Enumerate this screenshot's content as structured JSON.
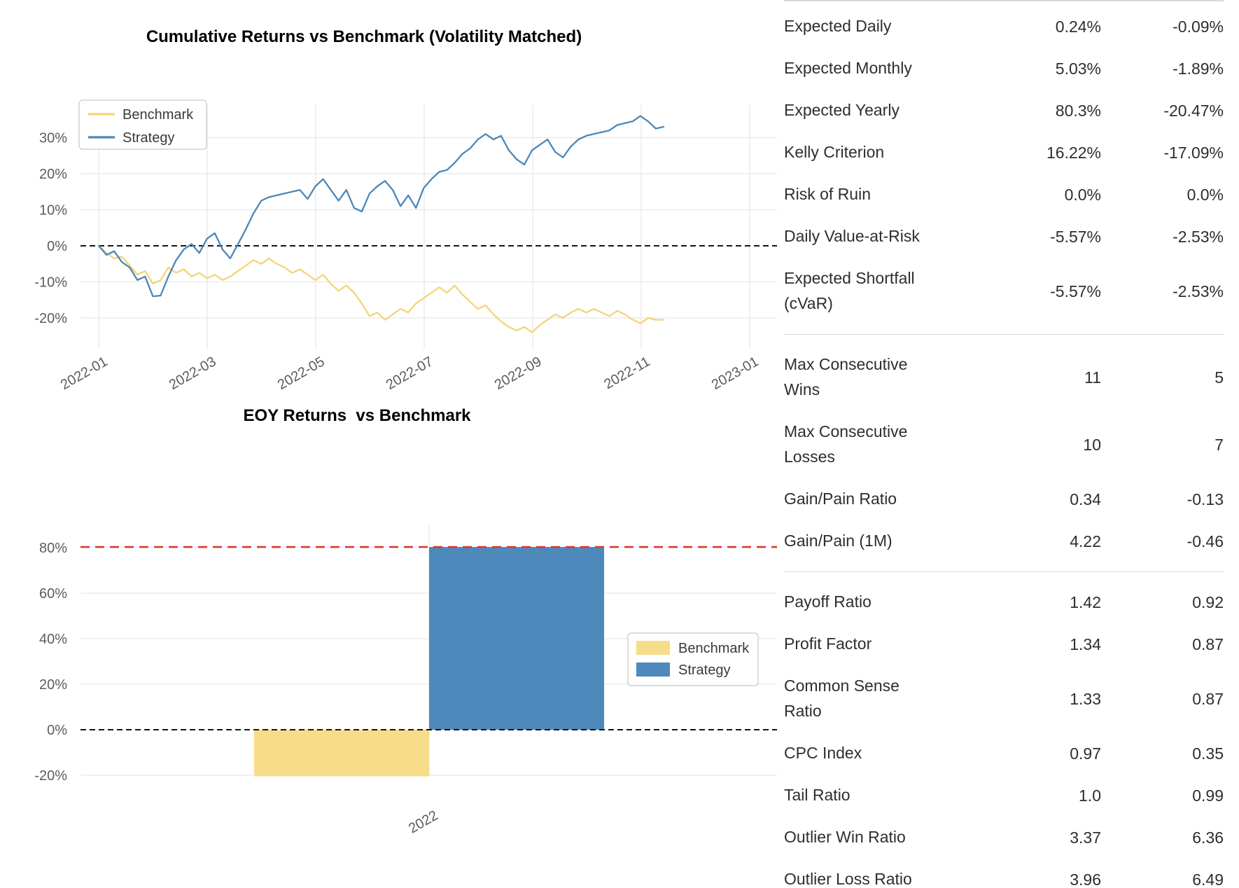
{
  "chart_data": [
    {
      "type": "line",
      "title": "Cumulative Returns vs Benchmark (Volatility Matched)",
      "x_tick_labels": [
        "2022-01",
        "2022-03",
        "2022-05",
        "2022-07",
        "2022-09",
        "2022-11",
        "2023-01"
      ],
      "y_ticks": [
        30,
        20,
        10,
        0,
        -10,
        -20
      ],
      "y_tick_labels": [
        "30%",
        "20%",
        "10%",
        "0%",
        "-10%",
        "-20%"
      ],
      "ylim": [
        -28.5,
        39
      ],
      "grid": true,
      "legend_loc": "upper left",
      "zero_line": {
        "value": 0,
        "style": "dashed",
        "color": "#151515"
      },
      "series": [
        {
          "name": "Benchmark",
          "color": "#f3d577",
          "values": [
            0,
            -2,
            -3.5,
            -3,
            -5.5,
            -8,
            -7,
            -10.5,
            -9.5,
            -6,
            -7.5,
            -6.5,
            -8.5,
            -7.5,
            -9,
            -8,
            -9.5,
            -8.5,
            -7,
            -5.5,
            -4,
            -5,
            -3.5,
            -5,
            -6,
            -7.5,
            -6.5,
            -8,
            -9.5,
            -8,
            -10.5,
            -12.5,
            -11,
            -13,
            -16,
            -19.5,
            -18.5,
            -20.5,
            -19,
            -17.5,
            -18.5,
            -16,
            -14.5,
            -13,
            -11.5,
            -13,
            -11,
            -13.5,
            -15.5,
            -17.5,
            -16.5,
            -19,
            -21,
            -22.5,
            -23.5,
            -22.5,
            -24,
            -22,
            -20.5,
            -19,
            -20,
            -18.5,
            -17.5,
            -18.5,
            -17.5,
            -18.5,
            -19.5,
            -18,
            -19,
            -20.5,
            -21.5,
            -20,
            -20.5,
            -20.5
          ]
        },
        {
          "name": "Strategy",
          "color": "#4c87b9",
          "values": [
            0,
            -2.5,
            -1.5,
            -4.5,
            -6,
            -9.5,
            -8.5,
            -14,
            -13.8,
            -8.5,
            -4,
            -1,
            0.5,
            -2,
            2,
            3.5,
            -1,
            -3.5,
            0.5,
            4.5,
            9,
            12.5,
            13.5,
            14,
            14.5,
            15,
            15.5,
            13,
            16.5,
            18.5,
            15.5,
            12.5,
            15.5,
            10.5,
            9.5,
            14.5,
            16.5,
            18,
            15.5,
            11,
            14,
            10.5,
            16,
            18.5,
            20.5,
            21,
            23,
            25.5,
            27,
            29.5,
            31,
            29.5,
            30.5,
            26.5,
            24,
            22.5,
            26.5,
            28,
            29.5,
            26,
            24.5,
            27.5,
            29.5,
            30.5,
            31,
            31.5,
            32,
            33.5,
            34,
            34.5,
            36,
            34.5,
            32.5,
            33
          ]
        }
      ]
    },
    {
      "type": "bar",
      "title": "EOY Returns  vs Benchmark",
      "categories": [
        "2022"
      ],
      "y_ticks": [
        80,
        60,
        40,
        20,
        0,
        -20
      ],
      "y_tick_labels": [
        "80%",
        "60%",
        "40%",
        "20%",
        "0%",
        "-20%"
      ],
      "ylim": [
        -28,
        90
      ],
      "grid": true,
      "legend_loc": "center right",
      "zero_line": {
        "value": 0,
        "style": "dashed",
        "color": "#151515"
      },
      "ref_line": {
        "value": 80.3,
        "style": "dashed",
        "color": "#d93a2b"
      },
      "series": [
        {
          "name": "Benchmark",
          "color": "#f7dc8a",
          "values": [
            -20.47
          ]
        },
        {
          "name": "Strategy",
          "color": "#4e89bc",
          "values": [
            80.3
          ]
        }
      ]
    }
  ],
  "metrics_table": {
    "sections": [
      {
        "rows": [
          {
            "label": "Expected Daily",
            "values": [
              "0.24%",
              "-0.09%"
            ]
          },
          {
            "label": "Expected Monthly",
            "values": [
              "5.03%",
              "-1.89%"
            ]
          },
          {
            "label": "Expected Yearly",
            "values": [
              "80.3%",
              "-20.47%"
            ]
          },
          {
            "label": "Kelly Criterion",
            "values": [
              "16.22%",
              "-17.09%"
            ]
          },
          {
            "label": "Risk of Ruin",
            "values": [
              "0.0%",
              "0.0%"
            ]
          },
          {
            "label": "Daily Value-at-Risk",
            "values": [
              "-5.57%",
              "-2.53%"
            ]
          },
          {
            "label": "Expected Shortfall\n(cVaR)",
            "values": [
              "-5.57%",
              "-2.53%"
            ]
          }
        ]
      },
      {
        "rows": [
          {
            "label": "Max Consecutive\nWins",
            "values": [
              "11",
              "5"
            ]
          },
          {
            "label": "Max Consecutive\nLosses",
            "values": [
              "10",
              "7"
            ]
          },
          {
            "label": "Gain/Pain Ratio",
            "values": [
              "0.34",
              "-0.13"
            ]
          },
          {
            "label": "Gain/Pain (1M)",
            "values": [
              "4.22",
              "-0.46"
            ]
          }
        ]
      },
      {
        "rows": [
          {
            "label": "Payoff Ratio",
            "values": [
              "1.42",
              "0.92"
            ]
          },
          {
            "label": "Profit Factor",
            "values": [
              "1.34",
              "0.87"
            ]
          },
          {
            "label": "Common Sense\nRatio",
            "values": [
              "1.33",
              "0.87"
            ]
          },
          {
            "label": "CPC Index",
            "values": [
              "0.97",
              "0.35"
            ]
          },
          {
            "label": "Tail Ratio",
            "values": [
              "1.0",
              "0.99"
            ]
          },
          {
            "label": "Outlier Win Ratio",
            "values": [
              "3.37",
              "6.36"
            ]
          },
          {
            "label": "Outlier Loss Ratio",
            "values": [
              "3.96",
              "6.49"
            ]
          }
        ]
      }
    ]
  }
}
